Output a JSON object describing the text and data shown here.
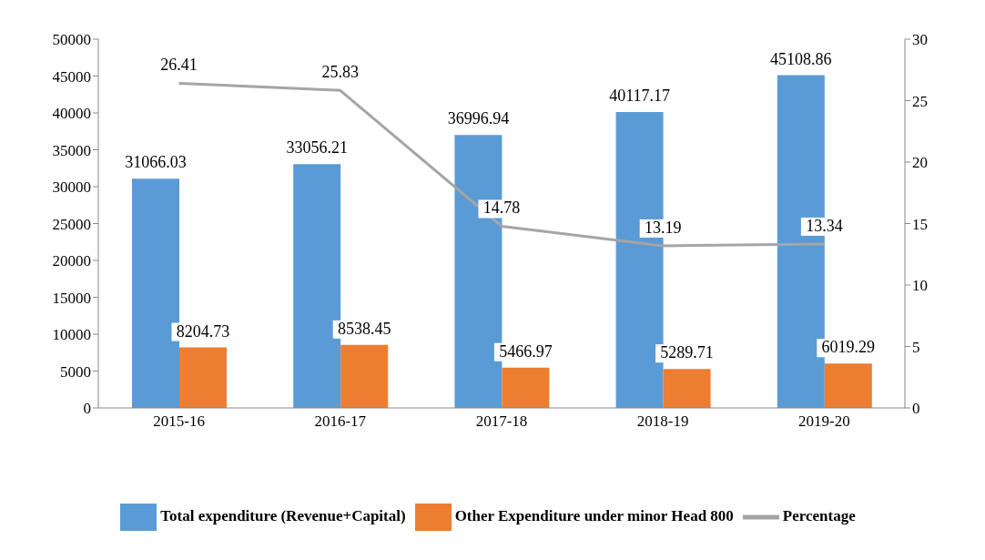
{
  "chart_data": {
    "type": "bar",
    "categories": [
      "2015-16",
      "2016-17",
      "2017-18",
      "2018-19",
      "2019-20"
    ],
    "series": [
      {
        "name": "Total expenditure (Revenue+Capital)",
        "color": "#5b9bd5",
        "values": [
          31066.03,
          33056.21,
          36996.94,
          40117.17,
          45108.86
        ]
      },
      {
        "name": "Other Expenditure under minor Head 800",
        "color": "#ed7d31",
        "values": [
          8204.73,
          8538.45,
          5466.97,
          5289.71,
          6019.29
        ]
      },
      {
        "name": "Percentage",
        "type": "line",
        "axis": "y2",
        "color": "#a5a5a5",
        "values": [
          26.41,
          25.83,
          14.78,
          13.19,
          13.34
        ]
      }
    ],
    "ylim": [
      0,
      50000
    ],
    "yticks": [
      0,
      5000,
      10000,
      15000,
      20000,
      25000,
      30000,
      35000,
      40000,
      45000,
      50000
    ],
    "y2lim": [
      0,
      30
    ],
    "y2ticks": [
      0,
      5,
      10,
      15,
      20,
      25,
      30
    ],
    "data_labels": true,
    "legend": "bottom",
    "marker": "none",
    "grid": false
  }
}
